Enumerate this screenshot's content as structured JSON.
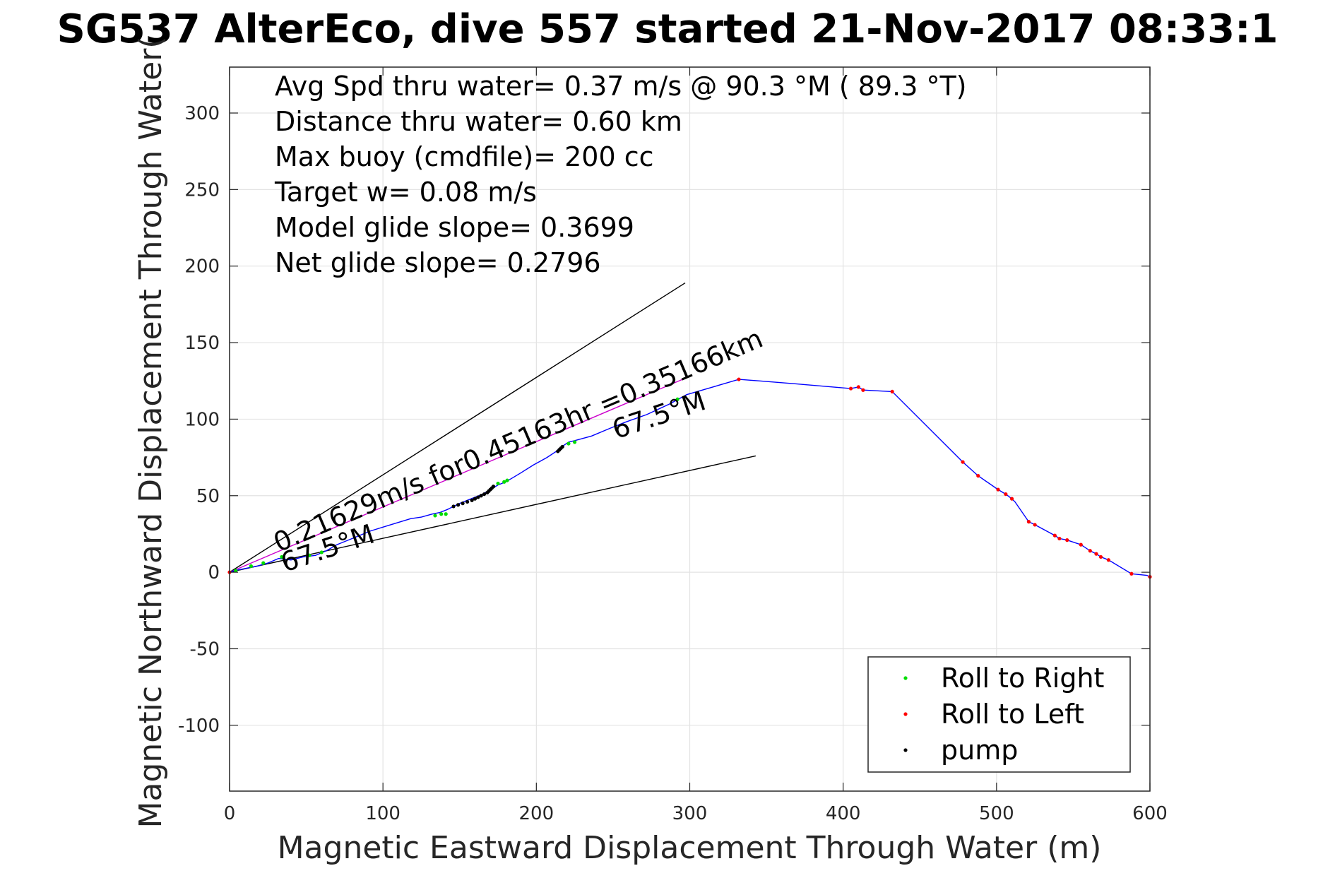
{
  "chart_data": {
    "type": "line",
    "title": "SG537 AlterEco, dive 557 started 21-Nov-2017 08:33:1",
    "xlabel": "Magnetic Eastward Displacement Through Water (m)",
    "ylabel": "Magnetic Northward Displacement Through Water(",
    "xlim": [
      0,
      600
    ],
    "ylim": [
      -143,
      330
    ],
    "xticks": [
      0,
      100,
      200,
      300,
      400,
      500,
      600
    ],
    "yticks": [
      -100,
      -50,
      0,
      50,
      100,
      150,
      200,
      250,
      300
    ],
    "grid": true,
    "legend_position": "bottom-right",
    "colors": {
      "track": "#0000ff",
      "roll_right": "#00dd00",
      "roll_left": "#ff0000",
      "pump": "#000000",
      "course": "#cc00cc",
      "heading_lines": "#000000"
    },
    "annotations": {
      "info_lines": [
        "Avg Spd thru water=  0.37 m/s @  90.3 °M ( 89.3 °T)",
        "Distance thru water=  0.60 km",
        "Max buoy (cmdfile)= 200 cc",
        "Target w= 0.08 m/s",
        "Model glide slope= 0.3699",
        "Net glide slope= 0.2796"
      ],
      "course_label": "0.21629m/s for0.45163hr =0.35166km",
      "heading_label_1": "67.5°M",
      "heading_label_2": "67.5°M"
    },
    "heading_lines": [
      {
        "from": [
          0,
          0
        ],
        "to": [
          297,
          189
        ]
      },
      {
        "from": [
          0,
          0
        ],
        "to": [
          343,
          76
        ]
      }
    ],
    "course_line": {
      "from": [
        0,
        0
      ],
      "to": [
        300,
        128
      ]
    },
    "series": [
      {
        "name": "track",
        "x": [
          0,
          3,
          8,
          13,
          18,
          25,
          32,
          40,
          48,
          56,
          63,
          70,
          80,
          92,
          105,
          118,
          125,
          132,
          137,
          142,
          146,
          150,
          155,
          160,
          165,
          170,
          175,
          180,
          185,
          190,
          198,
          207,
          213,
          215,
          218,
          221,
          225,
          236,
          248,
          258,
          272,
          287,
          298,
          315,
          332,
          345,
          370,
          405,
          410,
          413,
          432,
          478,
          488,
          501,
          506,
          510,
          512,
          521,
          525,
          538,
          541,
          546,
          555,
          561,
          565,
          568,
          573,
          588,
          598,
          600
        ],
        "y": [
          0,
          1,
          2,
          3,
          4,
          6,
          9,
          8,
          10,
          11,
          14,
          18,
          22,
          27,
          31,
          35,
          36,
          38,
          39,
          41,
          43,
          45,
          47,
          49,
          51,
          54,
          57,
          59,
          62,
          65,
          70,
          75,
          79,
          81,
          83,
          85,
          86,
          89,
          94,
          98,
          103,
          110,
          116,
          121,
          126,
          125,
          123,
          120,
          121,
          119,
          118,
          72,
          63,
          54,
          51,
          48,
          46,
          33,
          31,
          24,
          22,
          21,
          18,
          14,
          12,
          10,
          8,
          -1,
          -2,
          -3
        ]
      },
      {
        "name": "Roll to Right",
        "x": [
          4,
          14,
          22,
          34,
          52,
          60,
          134,
          138,
          141,
          172,
          175,
          179,
          181,
          217,
          221,
          225,
          292
        ],
        "y": [
          1,
          4,
          6,
          10,
          11,
          13,
          37,
          38,
          38,
          56,
          58,
          59,
          60,
          82,
          84,
          85,
          113
        ]
      },
      {
        "name": "Roll to Left",
        "x": [
          0,
          332,
          405,
          410,
          413,
          432,
          478,
          488,
          501,
          506,
          510,
          521,
          525,
          538,
          541,
          546,
          555,
          561,
          565,
          568,
          573,
          588,
          600
        ],
        "y": [
          0,
          126,
          120,
          121,
          119,
          118,
          72,
          63,
          54,
          51,
          48,
          33,
          31,
          24,
          22,
          21,
          18,
          14,
          12,
          10,
          8,
          -1,
          -3
        ]
      },
      {
        "name": "pump",
        "x": [
          146,
          149,
          152,
          155,
          158,
          160,
          162,
          164,
          166,
          168,
          169,
          170,
          171,
          172,
          214,
          215,
          216,
          217
        ],
        "y": [
          43,
          44,
          45,
          46,
          47,
          48,
          49,
          50,
          51,
          52,
          53,
          54,
          55,
          56,
          79,
          80,
          81,
          82
        ]
      }
    ],
    "legend": [
      "Roll to Right",
      "Roll to Left",
      "pump"
    ]
  }
}
